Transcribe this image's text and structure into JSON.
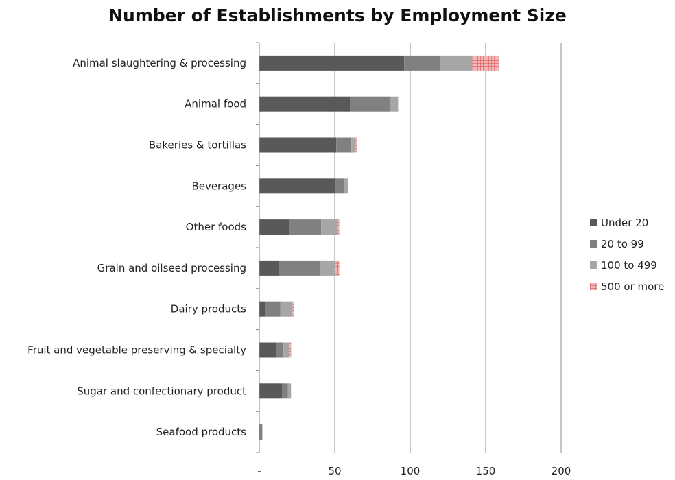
{
  "chart_data": {
    "type": "bar",
    "orientation": "horizontal",
    "stacked": true,
    "title": "Number of Establishments by Employment Size",
    "xlabel": "",
    "ylabel": "",
    "xlim": [
      0,
      200
    ],
    "x_ticks": [
      0,
      50,
      100,
      150,
      200
    ],
    "x_tick_labels": [
      "-",
      "50",
      "100",
      "150",
      "200"
    ],
    "grid": "vertical",
    "legend_position": "right",
    "categories": [
      "Animal slaughtering & processing",
      "Animal food",
      "Bakeries & tortillas",
      "Beverages",
      "Other foods",
      "Grain and oilseed processing",
      "Dairy products",
      "Fruit and vegetable preserving & specialty",
      "Sugar and confectionary product",
      "Seafood products"
    ],
    "series": [
      {
        "name": "Under 20",
        "color": "#595959",
        "values": [
          96,
          60,
          51,
          50,
          20,
          13,
          4,
          11,
          15,
          0
        ]
      },
      {
        "name": "20 to 99",
        "color": "#808080",
        "values": [
          24,
          27,
          10,
          6,
          21,
          27,
          10,
          5,
          4,
          2
        ]
      },
      {
        "name": "100 to 499",
        "color": "#a6a6a6",
        "values": [
          21,
          5,
          3,
          3,
          11,
          10,
          8,
          4,
          2,
          0
        ]
      },
      {
        "name": "500 or more",
        "color": "#e8888a",
        "pattern": "crosshatch",
        "values": [
          18,
          0,
          1,
          0,
          1,
          3,
          1,
          1,
          0,
          0
        ]
      }
    ]
  }
}
